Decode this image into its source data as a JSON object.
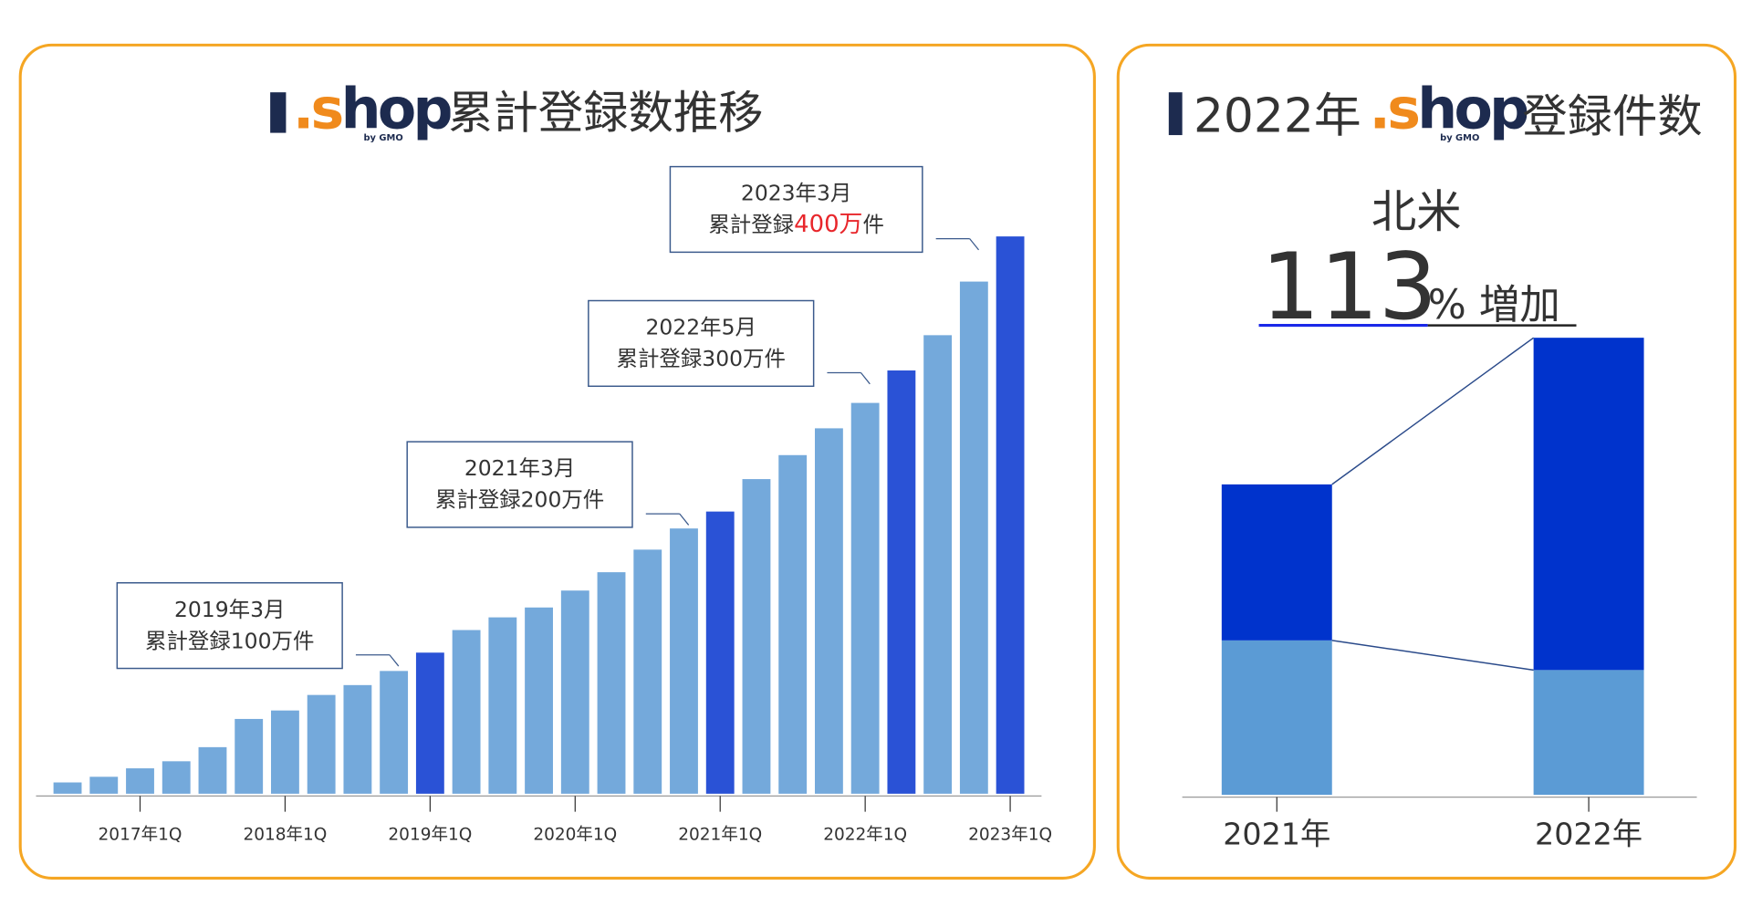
{
  "chart_data": [
    {
      "type": "bar",
      "title_logo": ".shop",
      "title_logo_by": "by GMO",
      "title": "累計登録数推移",
      "categories": [
        null,
        null,
        "2017年1Q",
        null,
        null,
        null,
        "2018年1Q",
        null,
        null,
        null,
        "2019年1Q",
        null,
        null,
        null,
        "2020年1Q",
        null,
        null,
        null,
        "2021年1Q",
        null,
        null,
        null,
        "2022年1Q",
        null,
        null,
        null,
        "2023年1Q"
      ],
      "values": [
        8,
        12,
        18,
        23,
        33,
        53,
        59,
        70,
        77,
        87,
        100,
        116,
        125,
        132,
        144,
        157,
        173,
        188,
        200,
        223,
        240,
        259,
        277,
        300,
        325,
        363,
        395
      ],
      "color": "#74a9db",
      "highlight_color": "#2a52d6",
      "annotations": [
        {
          "index": 10,
          "date": "2019年3月",
          "text": "累計登録100万件"
        },
        {
          "index": 18,
          "date": "2021年3月",
          "text": "累計登録200万件"
        },
        {
          "index": 23,
          "date": "2022年5月",
          "text": "累計登録300万件"
        },
        {
          "index": 26,
          "date": "2023年3月",
          "text": "累計登録",
          "emphasis": "400万",
          "suffix": "件",
          "emphasis_color": "#e8262b"
        }
      ]
    },
    {
      "type": "stacked_bar",
      "title_prefix": "2022年",
      "title_logo": ".shop",
      "title_logo_by": "by GMO",
      "title": "登録件数",
      "subtitle": "北米",
      "highlight": 113,
      "highlight_suffix": "% 増加",
      "highlight_color": "#1a28e8",
      "categories": [
        "2021年",
        "2022年"
      ],
      "series": [
        {
          "color": "#5b9bd5",
          "values": [
            99,
            80
          ]
        },
        {
          "color": "#0033cc",
          "values": [
            100,
            213
          ]
        }
      ]
    }
  ]
}
